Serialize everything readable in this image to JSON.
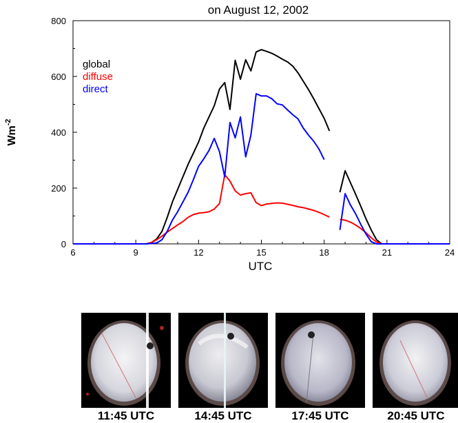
{
  "chart_data": {
    "type": "line",
    "title": "on August 12, 2002",
    "xlabel": "UTC",
    "ylabel": "Wm",
    "ylabel_sup": "-2",
    "xlim": [
      6,
      24
    ],
    "ylim": [
      0,
      800
    ],
    "xticks": [
      6,
      9,
      12,
      15,
      18,
      21,
      24
    ],
    "yticks": [
      0,
      200,
      400,
      600,
      800
    ],
    "grid": false,
    "legend_position": "top-left",
    "series": [
      {
        "name": "global",
        "color": "#000000",
        "segments": [
          [
            [
              6.0,
              0
            ],
            [
              9.5,
              0
            ],
            [
              9.75,
              5
            ],
            [
              10.0,
              18
            ],
            [
              10.25,
              45
            ],
            [
              10.5,
              95
            ],
            [
              10.75,
              150
            ],
            [
              11.0,
              195
            ],
            [
              11.25,
              240
            ],
            [
              11.5,
              285
            ],
            [
              11.75,
              325
            ],
            [
              12.0,
              365
            ],
            [
              12.25,
              415
            ],
            [
              12.5,
              455
            ],
            [
              12.75,
              495
            ],
            [
              13.0,
              555
            ],
            [
              13.25,
              578
            ],
            [
              13.5,
              482
            ],
            [
              13.75,
              658
            ],
            [
              14.0,
              590
            ],
            [
              14.25,
              660
            ],
            [
              14.5,
              620
            ],
            [
              14.75,
              688
            ],
            [
              15.0,
              696
            ],
            [
              15.25,
              690
            ],
            [
              15.5,
              683
            ],
            [
              15.75,
              673
            ],
            [
              16.0,
              662
            ],
            [
              16.25,
              652
            ],
            [
              16.5,
              637
            ],
            [
              16.75,
              613
            ],
            [
              17.0,
              583
            ],
            [
              17.25,
              553
            ],
            [
              17.5,
              520
            ],
            [
              17.75,
              485
            ],
            [
              18.0,
              450
            ],
            [
              18.25,
              405
            ]
          ],
          [
            [
              18.75,
              185
            ],
            [
              19.0,
              262
            ],
            [
              19.25,
              220
            ],
            [
              19.5,
              178
            ],
            [
              19.75,
              135
            ],
            [
              20.0,
              90
            ],
            [
              20.25,
              50
            ],
            [
              20.5,
              15
            ],
            [
              20.75,
              0
            ],
            [
              24.0,
              0
            ]
          ]
        ]
      },
      {
        "name": "diffuse",
        "color": "#ff0000",
        "segments": [
          [
            [
              6.0,
              0
            ],
            [
              9.5,
              0
            ],
            [
              9.75,
              5
            ],
            [
              10.0,
              15
            ],
            [
              10.25,
              28
            ],
            [
              10.5,
              42
            ],
            [
              10.75,
              55
            ],
            [
              11.0,
              68
            ],
            [
              11.25,
              80
            ],
            [
              11.5,
              95
            ],
            [
              11.75,
              105
            ],
            [
              12.0,
              110
            ],
            [
              12.25,
              112
            ],
            [
              12.5,
              115
            ],
            [
              12.75,
              125
            ],
            [
              13.0,
              145
            ],
            [
              13.25,
              248
            ],
            [
              13.5,
              225
            ],
            [
              13.75,
              190
            ],
            [
              14.0,
              175
            ],
            [
              14.25,
              180
            ],
            [
              14.5,
              183
            ],
            [
              14.75,
              148
            ],
            [
              15.0,
              137
            ],
            [
              15.25,
              143
            ],
            [
              15.5,
              145
            ],
            [
              15.75,
              147
            ],
            [
              16.0,
              146
            ],
            [
              16.25,
              142
            ],
            [
              16.5,
              138
            ],
            [
              16.75,
              133
            ],
            [
              17.0,
              130
            ],
            [
              17.25,
              125
            ],
            [
              17.5,
              120
            ],
            [
              17.75,
              113
            ],
            [
              18.0,
              105
            ],
            [
              18.25,
              96
            ]
          ],
          [
            [
              18.75,
              88
            ],
            [
              19.0,
              85
            ],
            [
              19.25,
              78
            ],
            [
              19.5,
              68
            ],
            [
              19.75,
              55
            ],
            [
              20.0,
              40
            ],
            [
              20.25,
              22
            ],
            [
              20.5,
              7
            ],
            [
              20.75,
              0
            ],
            [
              24.0,
              0
            ]
          ]
        ]
      },
      {
        "name": "direct",
        "color": "#0000ff",
        "segments": [
          [
            [
              6.0,
              0
            ],
            [
              9.5,
              0
            ],
            [
              10.0,
              3
            ],
            [
              10.25,
              15
            ],
            [
              10.5,
              45
            ],
            [
              10.75,
              85
            ],
            [
              11.0,
              115
            ],
            [
              11.25,
              150
            ],
            [
              11.5,
              185
            ],
            [
              11.75,
              230
            ],
            [
              12.0,
              278
            ],
            [
              12.25,
              305
            ],
            [
              12.5,
              335
            ],
            [
              12.75,
              378
            ],
            [
              13.0,
              330
            ],
            [
              13.25,
              240
            ],
            [
              13.5,
              435
            ],
            [
              13.75,
              380
            ],
            [
              14.0,
              455
            ],
            [
              14.25,
              312
            ],
            [
              14.5,
              390
            ],
            [
              14.75,
              538
            ],
            [
              15.0,
              530
            ],
            [
              15.25,
              530
            ],
            [
              15.5,
              520
            ],
            [
              15.75,
              502
            ],
            [
              16.0,
              498
            ],
            [
              16.25,
              480
            ],
            [
              16.5,
              463
            ],
            [
              16.75,
              448
            ],
            [
              17.0,
              415
            ],
            [
              17.25,
              390
            ],
            [
              17.5,
              368
            ],
            [
              17.75,
              340
            ],
            [
              18.0,
              302
            ]
          ],
          [
            [
              18.75,
              50
            ],
            [
              19.0,
              180
            ],
            [
              19.25,
              140
            ],
            [
              19.5,
              108
            ],
            [
              19.75,
              70
            ],
            [
              20.0,
              35
            ],
            [
              20.25,
              8
            ],
            [
              20.5,
              0
            ],
            [
              24.0,
              0
            ]
          ]
        ]
      }
    ]
  },
  "photos": [
    {
      "caption": "11:45 UTC"
    },
    {
      "caption": "14:45 UTC"
    },
    {
      "caption": "17:45 UTC"
    },
    {
      "caption": "20:45 UTC"
    }
  ]
}
